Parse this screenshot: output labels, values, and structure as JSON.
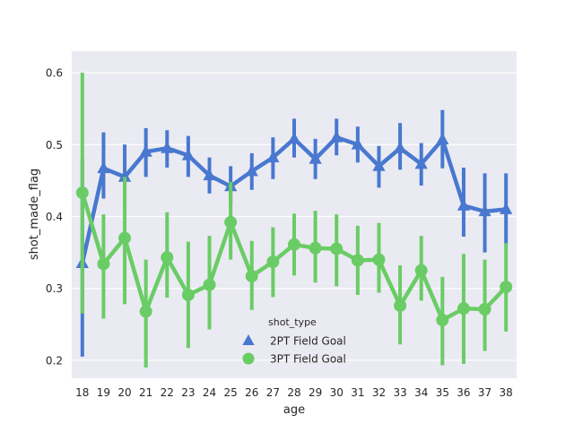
{
  "chart_data": {
    "type": "line",
    "title": "",
    "xlabel": "age",
    "ylabel": "shot_made_flag",
    "categories": [
      "18",
      "19",
      "20",
      "21",
      "22",
      "23",
      "24",
      "25",
      "26",
      "27",
      "28",
      "29",
      "30",
      "31",
      "32",
      "33",
      "34",
      "35",
      "36",
      "37",
      "38"
    ],
    "ylim": [
      0.175,
      0.63
    ],
    "yticks": [
      0.2,
      0.3,
      0.4,
      0.5,
      0.6
    ],
    "ytick_labels": [
      "0.2",
      "0.3",
      "0.4",
      "0.5",
      "0.6"
    ],
    "grid": true,
    "legend": {
      "title": "shot_type",
      "placement": "bottom-center"
    },
    "series": [
      {
        "name": "2PT Field Goal",
        "marker": "triangle",
        "color": "#4878cf",
        "values": [
          0.335,
          0.467,
          0.455,
          0.49,
          0.495,
          0.485,
          0.457,
          0.442,
          0.463,
          0.482,
          0.508,
          0.48,
          0.51,
          0.5,
          0.47,
          0.495,
          0.473,
          0.507,
          0.415,
          0.407,
          0.41
        ],
        "ci_low": [
          0.205,
          0.425,
          0.41,
          0.455,
          0.468,
          0.455,
          0.432,
          0.415,
          0.437,
          0.452,
          0.482,
          0.452,
          0.485,
          0.475,
          0.44,
          0.465,
          0.443,
          0.467,
          0.372,
          0.35,
          0.36
        ],
        "ci_high": [
          0.48,
          0.517,
          0.5,
          0.523,
          0.52,
          0.512,
          0.482,
          0.47,
          0.488,
          0.51,
          0.536,
          0.508,
          0.536,
          0.525,
          0.498,
          0.53,
          0.502,
          0.548,
          0.468,
          0.46,
          0.46
        ]
      },
      {
        "name": "3PT Field Goal",
        "marker": "circle",
        "color": "#6acc65",
        "values": [
          0.433,
          0.334,
          0.37,
          0.268,
          0.343,
          0.291,
          0.305,
          0.392,
          0.317,
          0.337,
          0.361,
          0.356,
          0.355,
          0.339,
          0.34,
          0.276,
          0.325,
          0.256,
          0.272,
          0.271,
          0.302
        ],
        "ci_low": [
          0.265,
          0.258,
          0.278,
          0.19,
          0.287,
          0.217,
          0.243,
          0.34,
          0.27,
          0.288,
          0.318,
          0.308,
          0.303,
          0.291,
          0.294,
          0.222,
          0.283,
          0.193,
          0.195,
          0.213,
          0.24
        ],
        "ci_high": [
          0.6,
          0.403,
          0.455,
          0.34,
          0.406,
          0.365,
          0.373,
          0.448,
          0.366,
          0.385,
          0.404,
          0.408,
          0.403,
          0.387,
          0.391,
          0.332,
          0.373,
          0.316,
          0.348,
          0.34,
          0.363
        ]
      }
    ]
  }
}
